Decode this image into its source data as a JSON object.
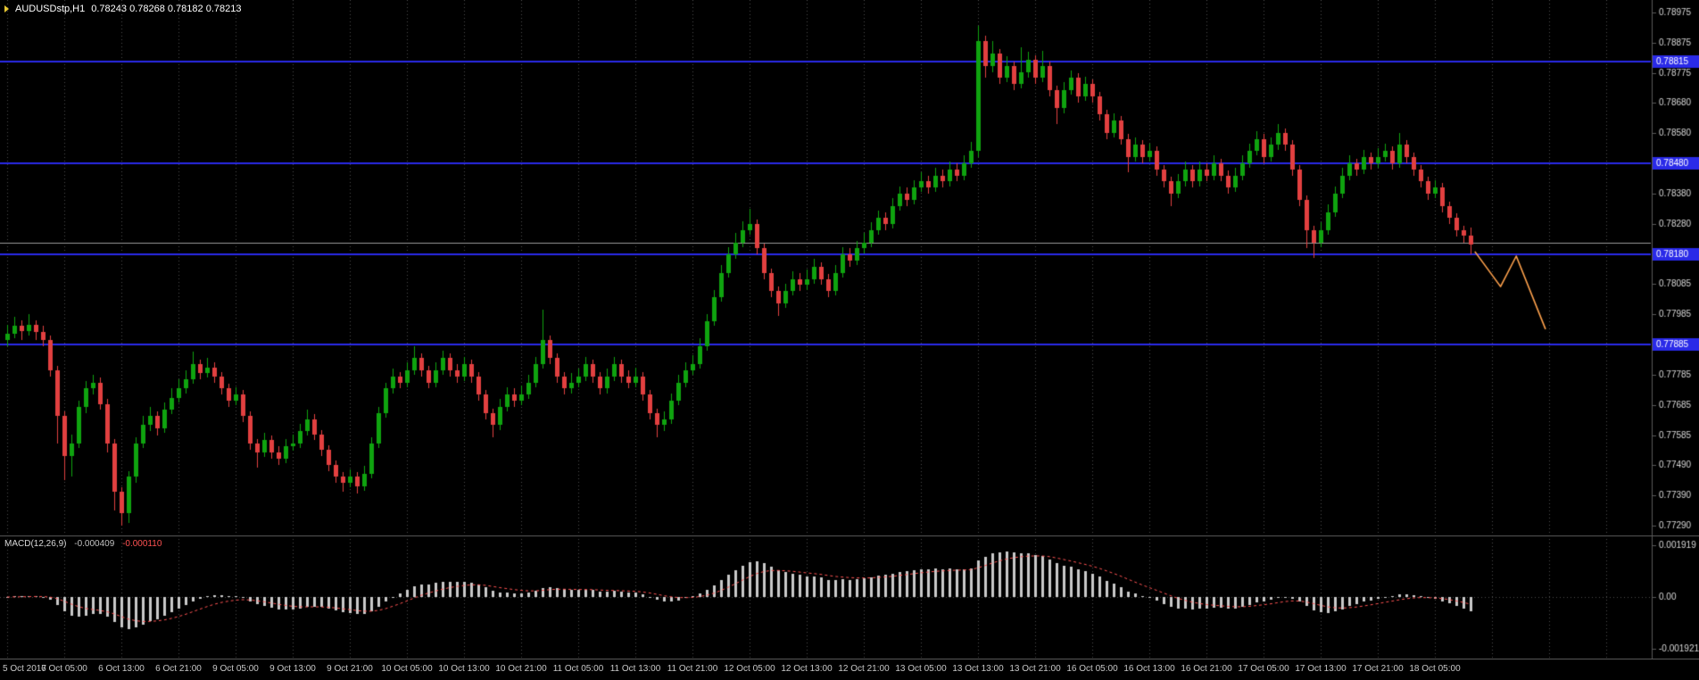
{
  "header": {
    "symbol_timeframe": "AUDUSDstp,H1",
    "ohlc_string": "0.78243 0.78268 0.78182 0.78213"
  },
  "chart_data": {
    "type": "candlestick",
    "title": "AUDUSDstp,H1",
    "symbol": "AUDUSDstp",
    "timeframe": "H1",
    "current_bar": {
      "open": "0.78243",
      "high": "0.78268",
      "low": "0.78182",
      "close": "0.78213"
    },
    "price_axis": {
      "top_price": 0.78975,
      "bottom_price": 0.7729,
      "labels": [
        "0.78975",
        "0.78875",
        "0.78775",
        "0.78680",
        "0.78580",
        "0.78480",
        "0.78380",
        "0.78280",
        "0.78180",
        "0.78085",
        "0.77985",
        "0.77885",
        "0.77785",
        "0.77685",
        "0.77585",
        "0.77490",
        "0.77390",
        "0.77290"
      ]
    },
    "time_axis": {
      "candles_per_gridline": 8,
      "labels": [
        "5 Oct 2017",
        "6 Oct 05:00",
        "6 Oct 13:00",
        "6 Oct 21:00",
        "9 Oct 05:00",
        "9 Oct 13:00",
        "9 Oct 21:00",
        "10 Oct 05:00",
        "10 Oct 13:00",
        "10 Oct 21:00",
        "11 Oct 05:00",
        "11 Oct 13:00",
        "11 Oct 21:00",
        "12 Oct 05:00",
        "12 Oct 13:00",
        "12 Oct 21:00",
        "13 Oct 05:00",
        "13 Oct 13:00",
        "13 Oct 21:00",
        "16 Oct 05:00",
        "16 Oct 13:00",
        "16 Oct 21:00",
        "17 Oct 05:00",
        "17 Oct 13:00",
        "17 Oct 21:00",
        "18 Oct 05:00"
      ]
    },
    "horizontal_levels": [
      {
        "price": 0.78815,
        "tag": "0.78815"
      },
      {
        "price": 0.7848,
        "tag": "0.78480"
      },
      {
        "price": 0.7818,
        "tag": "0.78180"
      },
      {
        "price": 0.77885,
        "tag": "0.77885"
      }
    ],
    "gray_level": {
      "price": 0.7822
    },
    "forecast_line": {
      "points_index_price": [
        [
          205.6,
          0.7819
        ],
        [
          209.2,
          0.78075
        ],
        [
          211.4,
          0.78175
        ],
        [
          215.5,
          0.77935
        ]
      ]
    },
    "macd": {
      "label": "MACD(12,26,9)",
      "value_main": "-0.000409",
      "value_signal": "-0.000110",
      "fast": 12,
      "slow": 26,
      "signal": 9,
      "axis_labels": [
        "0.001919",
        "0.00",
        "-0.001921"
      ],
      "scale_max": 0.001921
    },
    "colors": {
      "background": "#000000",
      "grid": "#4d4d4d",
      "up": "#0fa30f",
      "down": "#e24040",
      "level_blue": "#2a2ae8",
      "gray_line": "#9a9a9a",
      "forecast_orange": "#ffa24d",
      "histogram": "#c9c9c9",
      "signal_line": "#ff5252",
      "axis_text": "#d9d9d9",
      "separator": "#585858",
      "tag_text": "#ffffff"
    },
    "candles_ohlc": [
      [
        0.779,
        0.7795,
        0.7788,
        0.7792
      ],
      [
        0.7792,
        0.77975,
        0.77905,
        0.77945
      ],
      [
        0.77945,
        0.77965,
        0.779,
        0.7793
      ],
      [
        0.7793,
        0.77985,
        0.77915,
        0.7795
      ],
      [
        0.7795,
        0.77965,
        0.779,
        0.77925
      ],
      [
        0.77925,
        0.77945,
        0.7788,
        0.779
      ],
      [
        0.779,
        0.77915,
        0.7778,
        0.778
      ],
      [
        0.778,
        0.77815,
        0.7756,
        0.7765
      ],
      [
        0.7765,
        0.77665,
        0.7744,
        0.7752
      ],
      [
        0.7752,
        0.7759,
        0.7745,
        0.7756
      ],
      [
        0.7756,
        0.777,
        0.77545,
        0.7768
      ],
      [
        0.7768,
        0.77765,
        0.7766,
        0.7774
      ],
      [
        0.7774,
        0.77785,
        0.7772,
        0.7776
      ],
      [
        0.7776,
        0.77775,
        0.7767,
        0.7769
      ],
      [
        0.7769,
        0.77705,
        0.7753,
        0.7756
      ],
      [
        0.7756,
        0.77575,
        0.7734,
        0.774
      ],
      [
        0.774,
        0.77415,
        0.7729,
        0.7733
      ],
      [
        0.7733,
        0.7747,
        0.773,
        0.7745
      ],
      [
        0.7745,
        0.7758,
        0.7743,
        0.7756
      ],
      [
        0.7756,
        0.7765,
        0.77545,
        0.7762
      ],
      [
        0.7762,
        0.7768,
        0.776,
        0.7765
      ],
      [
        0.7765,
        0.77665,
        0.77585,
        0.7761
      ],
      [
        0.7761,
        0.77695,
        0.77595,
        0.7767
      ],
      [
        0.7767,
        0.7774,
        0.77655,
        0.7771
      ],
      [
        0.7771,
        0.7777,
        0.77695,
        0.7774
      ],
      [
        0.7774,
        0.778,
        0.77725,
        0.7777
      ],
      [
        0.7777,
        0.7786,
        0.77755,
        0.7782
      ],
      [
        0.7782,
        0.77835,
        0.7777,
        0.7779
      ],
      [
        0.7779,
        0.7784,
        0.77775,
        0.7781
      ],
      [
        0.7781,
        0.77825,
        0.7776,
        0.7778
      ],
      [
        0.7778,
        0.77795,
        0.7772,
        0.7774
      ],
      [
        0.7774,
        0.77755,
        0.7768,
        0.777
      ],
      [
        0.777,
        0.77745,
        0.77685,
        0.7772
      ],
      [
        0.7772,
        0.77735,
        0.7763,
        0.7765
      ],
      [
        0.7765,
        0.77665,
        0.7754,
        0.7756
      ],
      [
        0.7756,
        0.77575,
        0.7748,
        0.7753
      ],
      [
        0.7753,
        0.77595,
        0.77515,
        0.7757
      ],
      [
        0.7757,
        0.77585,
        0.7751,
        0.7753
      ],
      [
        0.7753,
        0.7755,
        0.7749,
        0.7751
      ],
      [
        0.7751,
        0.77575,
        0.77495,
        0.7755
      ],
      [
        0.7755,
        0.7759,
        0.77535,
        0.7756
      ],
      [
        0.7756,
        0.77625,
        0.77545,
        0.776
      ],
      [
        0.776,
        0.7767,
        0.77585,
        0.7764
      ],
      [
        0.7764,
        0.77655,
        0.7757,
        0.7759
      ],
      [
        0.7759,
        0.77605,
        0.7752,
        0.7754
      ],
      [
        0.7754,
        0.77555,
        0.7747,
        0.7749
      ],
      [
        0.7749,
        0.77505,
        0.7743,
        0.7745
      ],
      [
        0.7745,
        0.77465,
        0.774,
        0.7743
      ],
      [
        0.7743,
        0.77475,
        0.77415,
        0.7745
      ],
      [
        0.7745,
        0.77465,
        0.77395,
        0.7742
      ],
      [
        0.7742,
        0.77485,
        0.77405,
        0.7746
      ],
      [
        0.7746,
        0.7758,
        0.77445,
        0.7756
      ],
      [
        0.7756,
        0.7768,
        0.77545,
        0.7766
      ],
      [
        0.7766,
        0.7776,
        0.77645,
        0.7774
      ],
      [
        0.7774,
        0.77805,
        0.77725,
        0.7778
      ],
      [
        0.7778,
        0.77795,
        0.7774,
        0.7776
      ],
      [
        0.7776,
        0.77825,
        0.77745,
        0.778
      ],
      [
        0.778,
        0.7788,
        0.77785,
        0.7784
      ],
      [
        0.7784,
        0.77855,
        0.7778,
        0.778
      ],
      [
        0.778,
        0.77815,
        0.7774,
        0.7776
      ],
      [
        0.7776,
        0.77825,
        0.77745,
        0.778
      ],
      [
        0.778,
        0.77865,
        0.77785,
        0.7784
      ],
      [
        0.7784,
        0.77855,
        0.7778,
        0.778
      ],
      [
        0.778,
        0.7782,
        0.7776,
        0.7778
      ],
      [
        0.7778,
        0.77845,
        0.77765,
        0.7782
      ],
      [
        0.7782,
        0.77835,
        0.7776,
        0.7778
      ],
      [
        0.7778,
        0.77795,
        0.777,
        0.7772
      ],
      [
        0.7772,
        0.77735,
        0.7764,
        0.7766
      ],
      [
        0.7766,
        0.77675,
        0.7758,
        0.7762
      ],
      [
        0.7762,
        0.77705,
        0.77605,
        0.7768
      ],
      [
        0.7768,
        0.77745,
        0.77665,
        0.7772
      ],
      [
        0.7772,
        0.7774,
        0.7768,
        0.777
      ],
      [
        0.777,
        0.7775,
        0.77685,
        0.7772
      ],
      [
        0.7772,
        0.77785,
        0.77705,
        0.7776
      ],
      [
        0.7776,
        0.77845,
        0.77745,
        0.7782
      ],
      [
        0.7782,
        0.78,
        0.77805,
        0.779
      ],
      [
        0.779,
        0.77915,
        0.7782,
        0.7784
      ],
      [
        0.7784,
        0.77855,
        0.7776,
        0.7778
      ],
      [
        0.7778,
        0.77795,
        0.7772,
        0.7774
      ],
      [
        0.7774,
        0.7779,
        0.77725,
        0.7776
      ],
      [
        0.7776,
        0.77805,
        0.77745,
        0.7778
      ],
      [
        0.7778,
        0.77845,
        0.77765,
        0.7782
      ],
      [
        0.7782,
        0.77835,
        0.7776,
        0.7778
      ],
      [
        0.7778,
        0.77795,
        0.7772,
        0.7774
      ],
      [
        0.7774,
        0.77805,
        0.77725,
        0.7778
      ],
      [
        0.7778,
        0.77845,
        0.77765,
        0.7782
      ],
      [
        0.7782,
        0.77835,
        0.7776,
        0.7778
      ],
      [
        0.7778,
        0.778,
        0.7774,
        0.7776
      ],
      [
        0.7776,
        0.7781,
        0.77745,
        0.7778
      ],
      [
        0.7778,
        0.77795,
        0.777,
        0.7772
      ],
      [
        0.7772,
        0.77735,
        0.7764,
        0.7766
      ],
      [
        0.7766,
        0.77675,
        0.7758,
        0.7762
      ],
      [
        0.7762,
        0.77665,
        0.776,
        0.7764
      ],
      [
        0.7764,
        0.77725,
        0.77625,
        0.777
      ],
      [
        0.777,
        0.77785,
        0.77685,
        0.7776
      ],
      [
        0.7776,
        0.77825,
        0.77745,
        0.778
      ],
      [
        0.778,
        0.7785,
        0.77785,
        0.7782
      ],
      [
        0.7782,
        0.77905,
        0.77805,
        0.7788
      ],
      [
        0.7788,
        0.77985,
        0.77865,
        0.7796
      ],
      [
        0.7796,
        0.78065,
        0.77945,
        0.7804
      ],
      [
        0.7804,
        0.78145,
        0.78025,
        0.7812
      ],
      [
        0.7812,
        0.78205,
        0.78105,
        0.7818
      ],
      [
        0.7818,
        0.7825,
        0.78165,
        0.7822
      ],
      [
        0.7822,
        0.7829,
        0.78205,
        0.7826
      ],
      [
        0.7826,
        0.7833,
        0.78245,
        0.7828
      ],
      [
        0.7828,
        0.78295,
        0.7818,
        0.782
      ],
      [
        0.782,
        0.78215,
        0.781,
        0.7812
      ],
      [
        0.7812,
        0.78135,
        0.7804,
        0.7806
      ],
      [
        0.7806,
        0.78075,
        0.7798,
        0.7802
      ],
      [
        0.7802,
        0.78085,
        0.78005,
        0.7806
      ],
      [
        0.7806,
        0.78125,
        0.78045,
        0.781
      ],
      [
        0.781,
        0.7812,
        0.7806,
        0.7808
      ],
      [
        0.7808,
        0.7813,
        0.78065,
        0.781
      ],
      [
        0.781,
        0.78165,
        0.78085,
        0.7814
      ],
      [
        0.7814,
        0.78155,
        0.7808,
        0.781
      ],
      [
        0.781,
        0.78115,
        0.7804,
        0.7806
      ],
      [
        0.7806,
        0.78145,
        0.78045,
        0.7812
      ],
      [
        0.7812,
        0.78205,
        0.78105,
        0.7818
      ],
      [
        0.7818,
        0.782,
        0.7814,
        0.7816
      ],
      [
        0.7816,
        0.78225,
        0.78145,
        0.782
      ],
      [
        0.782,
        0.7825,
        0.78185,
        0.7822
      ],
      [
        0.7822,
        0.78285,
        0.78205,
        0.7826
      ],
      [
        0.7826,
        0.78325,
        0.78245,
        0.783
      ],
      [
        0.783,
        0.7832,
        0.7826,
        0.7828
      ],
      [
        0.7828,
        0.78365,
        0.78265,
        0.7834
      ],
      [
        0.7834,
        0.78405,
        0.78325,
        0.7838
      ],
      [
        0.7838,
        0.784,
        0.7834,
        0.7836
      ],
      [
        0.7836,
        0.78425,
        0.78345,
        0.784
      ],
      [
        0.784,
        0.7845,
        0.78385,
        0.7842
      ],
      [
        0.7842,
        0.7844,
        0.7838,
        0.784
      ],
      [
        0.784,
        0.78465,
        0.78385,
        0.7844
      ],
      [
        0.7844,
        0.7846,
        0.784,
        0.7842
      ],
      [
        0.7842,
        0.78485,
        0.78405,
        0.7846
      ],
      [
        0.7846,
        0.7848,
        0.7842,
        0.7844
      ],
      [
        0.7844,
        0.78505,
        0.78425,
        0.7848
      ],
      [
        0.7848,
        0.7855,
        0.78465,
        0.7852
      ],
      [
        0.7852,
        0.7893,
        0.785,
        0.7888
      ],
      [
        0.7888,
        0.789,
        0.7876,
        0.788
      ],
      [
        0.788,
        0.7888,
        0.7878,
        0.7884
      ],
      [
        0.7884,
        0.78855,
        0.7874,
        0.7876
      ],
      [
        0.7876,
        0.7883,
        0.78745,
        0.788
      ],
      [
        0.788,
        0.78815,
        0.7872,
        0.7874
      ],
      [
        0.7874,
        0.7886,
        0.78725,
        0.7878
      ],
      [
        0.7878,
        0.78845,
        0.7876,
        0.7882
      ],
      [
        0.7882,
        0.78835,
        0.7874,
        0.7876
      ],
      [
        0.7876,
        0.7885,
        0.78745,
        0.788
      ],
      [
        0.788,
        0.78815,
        0.787,
        0.7872
      ],
      [
        0.7872,
        0.78735,
        0.7861,
        0.7866
      ],
      [
        0.7866,
        0.78745,
        0.78645,
        0.7872
      ],
      [
        0.7872,
        0.78785,
        0.78705,
        0.7876
      ],
      [
        0.7876,
        0.78775,
        0.7868,
        0.787
      ],
      [
        0.787,
        0.78765,
        0.78685,
        0.7874
      ],
      [
        0.7874,
        0.78755,
        0.7868,
        0.787
      ],
      [
        0.787,
        0.78715,
        0.7862,
        0.7864
      ],
      [
        0.7864,
        0.78655,
        0.7856,
        0.7858
      ],
      [
        0.7858,
        0.78645,
        0.78565,
        0.7862
      ],
      [
        0.7862,
        0.78635,
        0.7854,
        0.7856
      ],
      [
        0.7856,
        0.78575,
        0.7845,
        0.785
      ],
      [
        0.785,
        0.78565,
        0.78485,
        0.7854
      ],
      [
        0.7854,
        0.78555,
        0.7848,
        0.785
      ],
      [
        0.785,
        0.78545,
        0.78485,
        0.7852
      ],
      [
        0.7852,
        0.78535,
        0.7844,
        0.7846
      ],
      [
        0.7846,
        0.78475,
        0.784,
        0.7842
      ],
      [
        0.7842,
        0.78435,
        0.7834,
        0.7838
      ],
      [
        0.7838,
        0.78445,
        0.78365,
        0.7842
      ],
      [
        0.7842,
        0.78485,
        0.78405,
        0.7846
      ],
      [
        0.7846,
        0.78475,
        0.784,
        0.7842
      ],
      [
        0.7842,
        0.78485,
        0.78405,
        0.7846
      ],
      [
        0.7846,
        0.7848,
        0.7842,
        0.7844
      ],
      [
        0.7844,
        0.78505,
        0.78425,
        0.7848
      ],
      [
        0.7848,
        0.78495,
        0.7842,
        0.7844
      ],
      [
        0.7844,
        0.78455,
        0.7838,
        0.784
      ],
      [
        0.784,
        0.78465,
        0.78385,
        0.7844
      ],
      [
        0.7844,
        0.78505,
        0.78425,
        0.7848
      ],
      [
        0.7848,
        0.78545,
        0.78465,
        0.7852
      ],
      [
        0.7852,
        0.78585,
        0.78505,
        0.7856
      ],
      [
        0.7856,
        0.78575,
        0.7848,
        0.785
      ],
      [
        0.785,
        0.78565,
        0.78485,
        0.7854
      ],
      [
        0.7854,
        0.7861,
        0.78525,
        0.7858
      ],
      [
        0.7858,
        0.78595,
        0.7852,
        0.7854
      ],
      [
        0.7854,
        0.78555,
        0.7844,
        0.7846
      ],
      [
        0.7846,
        0.78475,
        0.7834,
        0.7836
      ],
      [
        0.7836,
        0.78375,
        0.782,
        0.7826
      ],
      [
        0.7826,
        0.78275,
        0.7817,
        0.7822
      ],
      [
        0.7822,
        0.78285,
        0.78205,
        0.7826
      ],
      [
        0.7826,
        0.78345,
        0.78245,
        0.7832
      ],
      [
        0.7832,
        0.78405,
        0.78305,
        0.7838
      ],
      [
        0.7838,
        0.78465,
        0.78365,
        0.7844
      ],
      [
        0.7844,
        0.78505,
        0.78425,
        0.7848
      ],
      [
        0.7848,
        0.78495,
        0.7844,
        0.7846
      ],
      [
        0.7846,
        0.78525,
        0.78445,
        0.785
      ],
      [
        0.785,
        0.78515,
        0.7846,
        0.7848
      ],
      [
        0.7848,
        0.7853,
        0.78465,
        0.785
      ],
      [
        0.785,
        0.78545,
        0.78485,
        0.7852
      ],
      [
        0.7852,
        0.78535,
        0.7846,
        0.7848
      ],
      [
        0.7848,
        0.7858,
        0.78465,
        0.7854
      ],
      [
        0.7854,
        0.78555,
        0.7848,
        0.785
      ],
      [
        0.785,
        0.78515,
        0.7844,
        0.7846
      ],
      [
        0.7846,
        0.78475,
        0.784,
        0.7842
      ],
      [
        0.7842,
        0.78435,
        0.7836,
        0.7838
      ],
      [
        0.7838,
        0.78425,
        0.78365,
        0.784
      ],
      [
        0.784,
        0.78415,
        0.7832,
        0.7834
      ],
      [
        0.7834,
        0.78355,
        0.7828,
        0.783
      ],
      [
        0.783,
        0.78315,
        0.7824,
        0.7826
      ],
      [
        0.7826,
        0.78275,
        0.7822,
        0.78243
      ],
      [
        0.78243,
        0.78268,
        0.78182,
        0.78213
      ]
    ]
  }
}
